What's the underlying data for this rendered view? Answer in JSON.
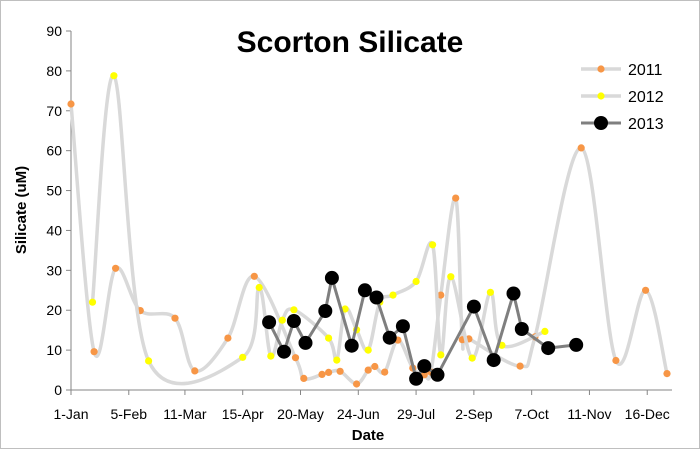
{
  "chart_data": {
    "type": "line",
    "title": "Scorton Silicate",
    "xlabel": "Date",
    "ylabel": "Silicate (uM)",
    "ylim": [
      0,
      90
    ],
    "yticks": [
      0,
      10,
      20,
      30,
      40,
      50,
      60,
      70,
      80,
      90
    ],
    "xlim": [
      "1-Jan",
      "31-Dec"
    ],
    "xticks": [
      "1-Jan",
      "5-Feb",
      "11-Mar",
      "15-Apr",
      "20-May",
      "24-Jun",
      "29-Jul",
      "2-Sep",
      "7-Oct",
      "11-Nov",
      "16-Dec"
    ],
    "grid": false,
    "legend_position": "top-right",
    "series": [
      {
        "name": "2011",
        "color": "#f79646",
        "line_color": "#d9d9d9",
        "marker": "small-circle",
        "smooth": true,
        "points": [
          [
            "1-Jan",
            71.7
          ],
          [
            "15-Jan",
            9.6
          ],
          [
            "28-Jan",
            30.5
          ],
          [
            "12-Feb",
            19.9
          ],
          [
            "5-Mar",
            18.0
          ],
          [
            "17-Mar",
            4.8
          ],
          [
            "6-Apr",
            13.0
          ],
          [
            "22-Apr",
            28.5
          ],
          [
            "17-May",
            8.1
          ],
          [
            "22-May",
            2.9
          ],
          [
            "2-Jun",
            3.9
          ],
          [
            "6-Jun",
            4.4
          ],
          [
            "13-Jun",
            4.7
          ],
          [
            "23-Jun",
            1.5
          ],
          [
            "30-Jun",
            5.0
          ],
          [
            "4-Jul",
            5.9
          ],
          [
            "10-Jul",
            4.5
          ],
          [
            "18-Jul",
            12.5
          ],
          [
            "27-Jul",
            5.5
          ],
          [
            "3-Aug",
            3.8
          ],
          [
            "7-Aug",
            4.5
          ],
          [
            "13-Aug",
            23.8
          ],
          [
            "22-Aug",
            48.1
          ],
          [
            "26-Aug",
            12.6
          ],
          [
            "30-Aug",
            12.8
          ],
          [
            "30-Sep",
            6.0
          ],
          [
            "9-Oct",
            13.3
          ],
          [
            "6-Nov",
            60.7
          ],
          [
            "27-Nov",
            7.4
          ],
          [
            "15-Dec",
            25.0
          ],
          [
            "28-Dec",
            4.1
          ]
        ]
      },
      {
        "name": "2012",
        "color": "#ffff00",
        "line_color": "#d9d9d9",
        "marker": "small-circle",
        "smooth": true,
        "points": [
          [
            "14-Jan",
            22.0
          ],
          [
            "27-Jan",
            78.8
          ],
          [
            "17-Feb",
            7.3
          ],
          [
            "15-Apr",
            8.2
          ],
          [
            "25-Apr",
            25.7
          ],
          [
            "2-May",
            8.5
          ],
          [
            "9-May",
            17.5
          ],
          [
            "16-May",
            20.1
          ],
          [
            "6-Jun",
            13.0
          ],
          [
            "11-Jun",
            7.5
          ],
          [
            "16-Jun",
            20.3
          ],
          [
            "23-Jun",
            15.1
          ],
          [
            "30-Jun",
            10.0
          ],
          [
            "7-Jul",
            22.0
          ],
          [
            "15-Jul",
            23.8
          ],
          [
            "29-Jul",
            27.2
          ],
          [
            "8-Aug",
            36.4
          ],
          [
            "13-Aug",
            8.8
          ],
          [
            "19-Aug",
            28.4
          ],
          [
            "1-Sep",
            8.0
          ],
          [
            "12-Sep",
            24.5
          ],
          [
            "19-Sep",
            11.2
          ],
          [
            "15-Oct",
            14.7
          ]
        ]
      },
      {
        "name": "2013",
        "color": "#000000",
        "line_color": "#7f7f7f",
        "marker": "large-circle",
        "smooth": false,
        "points": [
          [
            "1-May",
            17.0
          ],
          [
            "10-May",
            9.6
          ],
          [
            "16-May",
            17.3
          ],
          [
            "23-May",
            11.8
          ],
          [
            "4-Jun",
            19.8
          ],
          [
            "8-Jun",
            28.1
          ],
          [
            "20-Jun",
            11.1
          ],
          [
            "28-Jun",
            25.0
          ],
          [
            "5-Jul",
            23.2
          ],
          [
            "13-Jul",
            13.1
          ],
          [
            "21-Jul",
            16.0
          ],
          [
            "29-Jul",
            2.8
          ],
          [
            "3-Aug",
            6.0
          ],
          [
            "11-Aug",
            3.8
          ],
          [
            "2-Sep",
            20.9
          ],
          [
            "14-Sep",
            7.5
          ],
          [
            "26-Sep",
            24.2
          ],
          [
            "1-Oct",
            15.3
          ],
          [
            "17-Oct",
            10.5
          ],
          [
            "3-Nov",
            11.3
          ]
        ]
      }
    ]
  }
}
